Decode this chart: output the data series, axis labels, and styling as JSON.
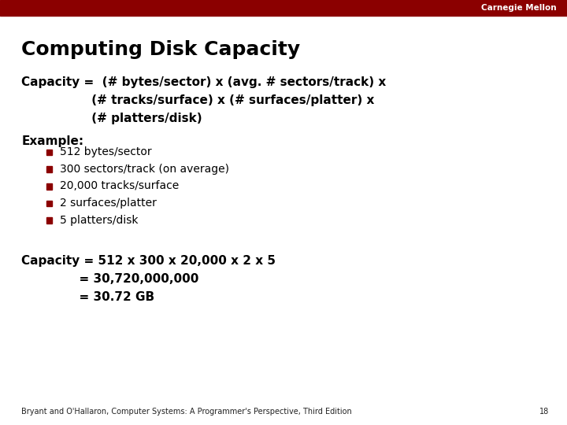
{
  "title": "Computing Disk Capacity",
  "header_bar_color": "#8B0000",
  "header_text": "Carnegie Mellon",
  "header_text_color": "#FFFFFF",
  "bg_color": "#FFFFFF",
  "title_color": "#000000",
  "title_fontsize": 18,
  "body_fontsize": 11,
  "bullet_fontsize": 10,
  "calc_fontsize": 11,
  "bullet_color": "#8B0000",
  "formula_line1": "Capacity =  (# bytes/sector) x (avg. # sectors/track) x",
  "formula_line2": "                 (# tracks/surface) x (# surfaces/platter) x",
  "formula_line3": "                 (# platters/disk)",
  "example_label": "Example:",
  "bullets": [
    "512 bytes/sector",
    "300 sectors/track (on average)",
    "20,000 tracks/surface",
    "2 surfaces/platter",
    "5 platters/disk"
  ],
  "calc_line1": "Capacity = 512 x 300 x 20,000 x 2 x 5",
  "calc_line2": "              = 30,720,000,000",
  "calc_line3": "              = 30.72 GB",
  "footer_text": "Bryant and O'Hallaron, Computer Systems: A Programmer's Perspective, Third Edition",
  "footer_page": "18",
  "footer_fontsize": 7
}
